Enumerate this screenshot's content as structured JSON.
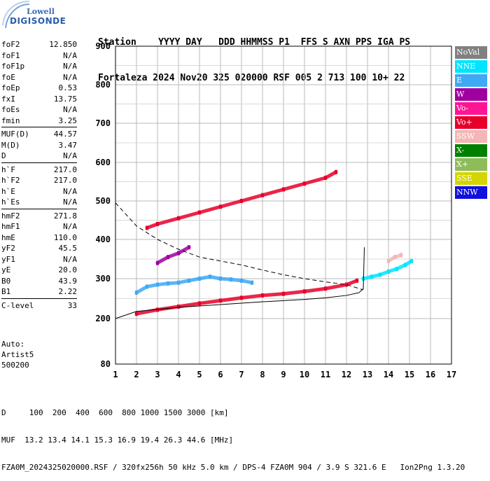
{
  "logo": {
    "top": "Lowell",
    "bottom": "DIGISONDE"
  },
  "header": {
    "line1": "Station    YYYY DAY   DDD HHMMSS P1  FFS S AXN PPS IGA PS",
    "line2": "Fortaleza 2024 Nov20 325 020000 RSF 005 2 713 100 10+ 22"
  },
  "params": [
    {
      "group": [
        {
          "label": "foF2",
          "value": "12.850"
        },
        {
          "label": "foF1",
          "value": "N/A"
        },
        {
          "label": "foF1p",
          "value": "N/A"
        },
        {
          "label": "foE",
          "value": "N/A"
        },
        {
          "label": "foEp",
          "value": "0.53"
        },
        {
          "label": "fxI",
          "value": "13.75"
        },
        {
          "label": "foEs",
          "value": "N/A"
        },
        {
          "label": "fmin",
          "value": "3.25"
        }
      ]
    },
    {
      "group": [
        {
          "label": "MUF(D)",
          "value": "44.57"
        },
        {
          "label": "M(D)",
          "value": "3.47"
        },
        {
          "label": "D",
          "value": "N/A"
        }
      ]
    },
    {
      "group": [
        {
          "label": "h`F",
          "value": "217.0"
        },
        {
          "label": "h`F2",
          "value": "217.0"
        },
        {
          "label": "h`E",
          "value": "N/A"
        },
        {
          "label": "h`Es",
          "value": "N/A"
        }
      ]
    },
    {
      "group": [
        {
          "label": "hmF2",
          "value": "271.8"
        },
        {
          "label": "hmF1",
          "value": "N/A"
        },
        {
          "label": "hmE",
          "value": "110.0"
        },
        {
          "label": "yF2",
          "value": "45.5"
        },
        {
          "label": "yF1",
          "value": "N/A"
        },
        {
          "label": "yE",
          "value": "20.0"
        },
        {
          "label": "B0",
          "value": "43.9"
        },
        {
          "label": "B1",
          "value": "2.22"
        }
      ]
    },
    {
      "group": [
        {
          "label": "C-level",
          "value": "33"
        }
      ]
    }
  ],
  "auto": [
    "Auto:",
    "Artist5",
    "500200"
  ],
  "legend": [
    {
      "label": "NoVal",
      "color": "#808080",
      "text": "#ffffff"
    },
    {
      "label": "NNE",
      "color": "#00e5ff",
      "text": "#ffffff"
    },
    {
      "label": "E",
      "color": "#3fa9f5",
      "text": "#ffffff"
    },
    {
      "label": "W",
      "color": "#a000a0",
      "text": "#ffffff"
    },
    {
      "label": "Vo-",
      "color": "#ff1493",
      "text": "#ffffff"
    },
    {
      "label": "Vo+",
      "color": "#e8002a",
      "text": "#ffffff"
    },
    {
      "label": "SSW",
      "color": "#f4b6b6",
      "text": "#ffffff"
    },
    {
      "label": "X-",
      "color": "#008000",
      "text": "#ffffff"
    },
    {
      "label": "X+",
      "color": "#8fbc5a",
      "text": "#ffffff"
    },
    {
      "label": "SSE",
      "color": "#d4d400",
      "text": "#ffffff"
    },
    {
      "label": "NNW",
      "color": "#1010e0",
      "text": "#ffffff"
    }
  ],
  "footer": {
    "line1": "D     100  200  400  600  800 1000 1500 3000 [km]",
    "line2": "MUF  13.2 13.4 14.1 15.3 16.9 19.4 26.3 44.6 [MHz]",
    "line3": "FZA0M_2024325020000.RSF / 320fx256h 50 kHz 5.0 km / DPS-4 FZA0M 904 / 3.9 S 321.6 E   Ion2Png 1.3.20"
  },
  "chart_data": {
    "type": "scatter",
    "xlim": [
      1,
      17
    ],
    "ylim": [
      80,
      900
    ],
    "x_ticks": [
      1,
      2,
      3,
      4,
      5,
      6,
      7,
      8,
      9,
      10,
      11,
      12,
      13,
      14,
      15,
      16,
      17
    ],
    "y_ticks": [
      80,
      200,
      300,
      400,
      500,
      600,
      700,
      800,
      900
    ],
    "y_tick_labels": [
      "80",
      "200",
      "300",
      "400",
      "500",
      "600",
      "700",
      "800",
      "900"
    ],
    "grid": true,
    "legend_position": "right",
    "traces": [
      {
        "name": "NNE",
        "x": [
          12.8,
          13.2,
          13.6,
          14.0,
          14.4,
          14.8,
          15.1
        ],
        "y": [
          300,
          305,
          310,
          318,
          325,
          335,
          345
        ]
      },
      {
        "name": "E",
        "x": [
          2.0,
          2.5,
          3.0,
          3.5,
          4.0,
          4.5,
          5.0,
          5.5,
          6.0,
          6.5,
          7.0,
          7.5
        ],
        "y": [
          265,
          280,
          285,
          288,
          290,
          295,
          300,
          305,
          300,
          298,
          295,
          290
        ]
      },
      {
        "name": "Vo+",
        "x": [
          2.0,
          3.0,
          4.0,
          5.0,
          6.0,
          7.0,
          8.0,
          9.0,
          10.0,
          11.0,
          12.0,
          12.5
        ],
        "y": [
          212,
          222,
          230,
          238,
          245,
          252,
          258,
          262,
          268,
          275,
          285,
          295
        ]
      },
      {
        "name": "Vo+ (multihop)",
        "x": [
          2.5,
          3.0,
          4.0,
          5.0,
          6.0,
          7.0,
          8.0,
          9.0,
          10.0,
          11.0,
          11.5
        ],
        "y": [
          430,
          440,
          455,
          470,
          485,
          500,
          515,
          530,
          545,
          560,
          575
        ]
      },
      {
        "name": "W",
        "x": [
          3.0,
          3.5,
          4.0,
          4.5
        ],
        "y": [
          340,
          355,
          365,
          380
        ]
      },
      {
        "name": "SSW",
        "x": [
          14.0,
          14.3,
          14.6
        ],
        "y": [
          345,
          355,
          360
        ]
      }
    ],
    "profile_curve": {
      "x": [
        1.0,
        2.0,
        4.0,
        6.0,
        8.0,
        10.0,
        11.0,
        12.0,
        12.6,
        12.8,
        12.85
      ],
      "y": [
        200,
        218,
        228,
        235,
        242,
        248,
        252,
        258,
        265,
        275,
        380
      ]
    },
    "dashed_curve": {
      "x": [
        1.0,
        2.0,
        3.0,
        4.0,
        5.0,
        6.0,
        7.0,
        8.0,
        9.0,
        10.0,
        11.0,
        12.0,
        12.8
      ],
      "y": [
        495,
        435,
        400,
        375,
        355,
        345,
        335,
        322,
        310,
        300,
        292,
        285,
        272
      ]
    }
  }
}
